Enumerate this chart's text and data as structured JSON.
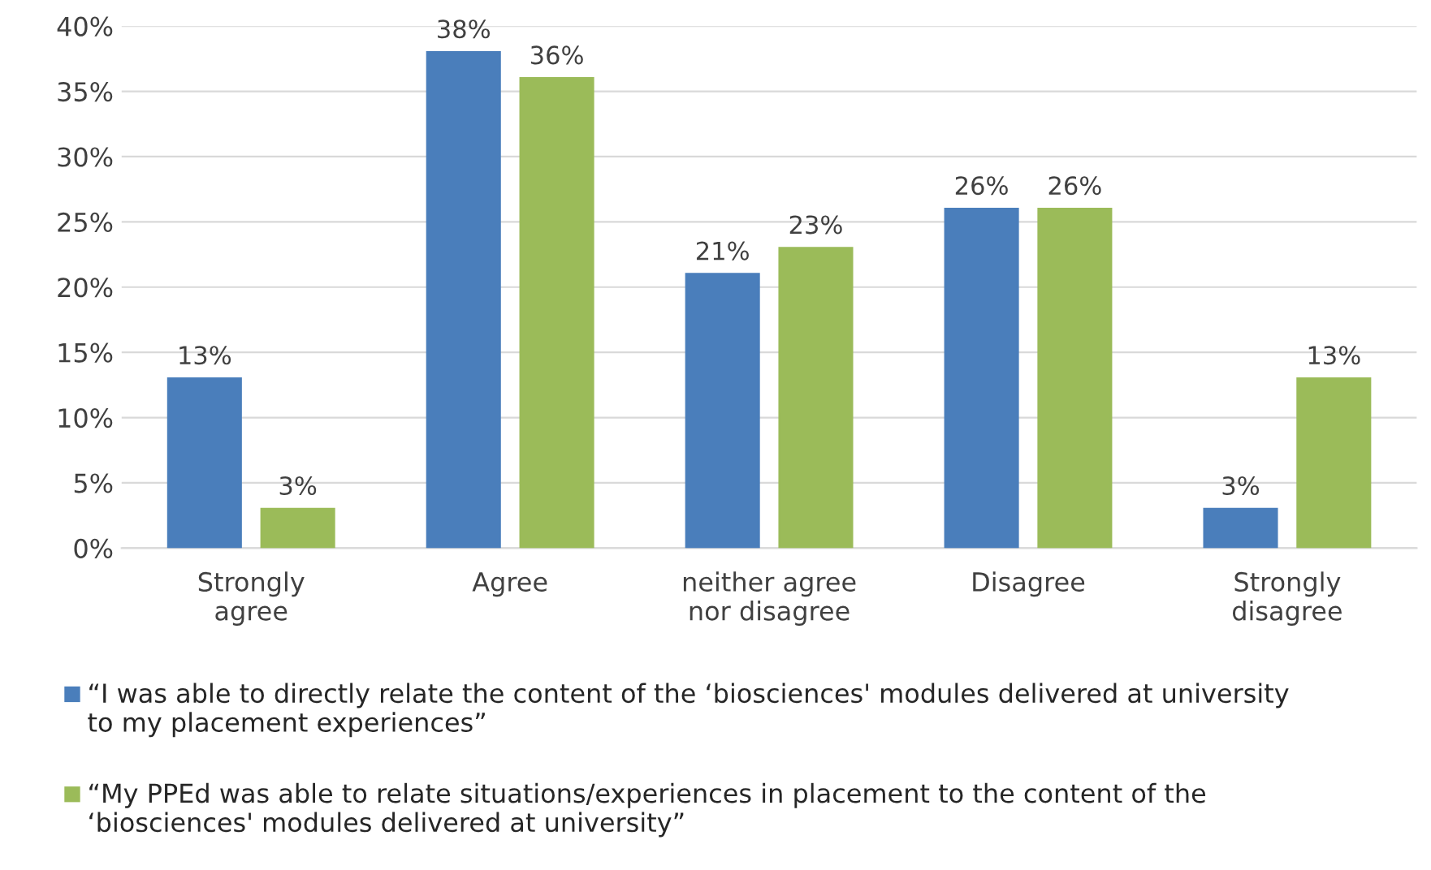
{
  "chart_data": {
    "type": "bar",
    "categories": [
      "Strongly agree",
      "Agree",
      "neither agree nor disagree",
      "Disagree",
      "Strongly disagree"
    ],
    "series": [
      {
        "name": "“I was able to directly relate the content of the ‘biosciences' modules delivered at university to my placement experiences”",
        "color": "#4a7ebb",
        "values": [
          13,
          38,
          21,
          26,
          3
        ],
        "value_labels": [
          "13%",
          "38%",
          "21%",
          "26%",
          "3%"
        ]
      },
      {
        "name": "“My PPEd was able to relate situations/experiences in placement to the content of the ‘biosciences' modules delivered at university”",
        "color": "#9bbb59",
        "values": [
          3,
          36,
          23,
          26,
          13
        ],
        "value_labels": [
          "3%",
          "36%",
          "23%",
          "26%",
          "13%"
        ]
      }
    ],
    "ylim": [
      0,
      40
    ],
    "yticks": [
      {
        "value": 0,
        "label": "0%"
      },
      {
        "value": 5,
        "label": "5%"
      },
      {
        "value": 10,
        "label": "10%"
      },
      {
        "value": 15,
        "label": "15%"
      },
      {
        "value": 20,
        "label": "20%"
      },
      {
        "value": 25,
        "label": "25%"
      },
      {
        "value": 30,
        "label": "30%"
      },
      {
        "value": 35,
        "label": "35%"
      },
      {
        "value": 40,
        "label": "40%"
      }
    ],
    "grid": "y",
    "legend": "bottom"
  }
}
